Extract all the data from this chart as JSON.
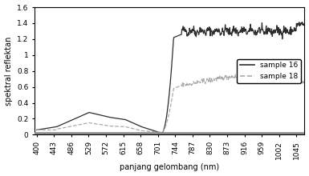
{
  "title": "",
  "xlabel": "panjang gelombang (nm)",
  "ylabel": "spektral reflektan",
  "x_ticks": [
    400,
    443,
    486,
    529,
    572,
    615,
    658,
    701,
    744,
    787,
    830,
    873,
    916,
    959,
    1002,
    1045
  ],
  "ylim": [
    0,
    1.6
  ],
  "yticks": [
    0,
    0.2,
    0.4,
    0.6,
    0.8,
    1.0,
    1.2,
    1.4,
    1.6
  ],
  "legend": [
    "sample 16",
    "sample 18"
  ],
  "color16": "#2c2c2c",
  "color18": "#aaaaaa",
  "background_color": "#ffffff"
}
